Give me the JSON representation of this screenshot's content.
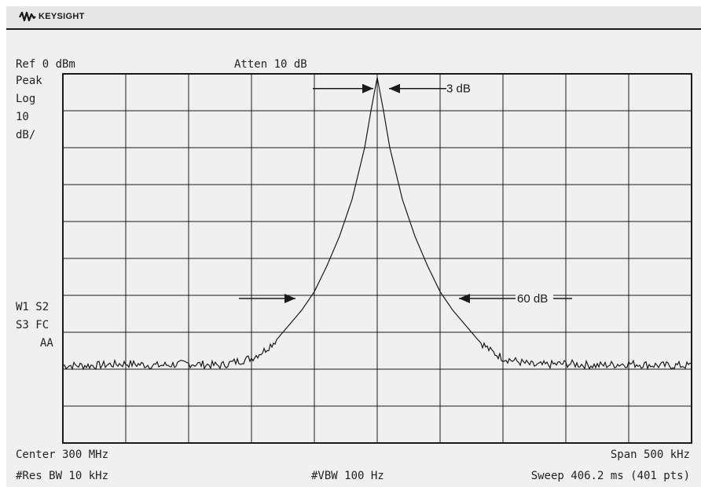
{
  "brand": {
    "name": "KEYSIGHT",
    "icon": "keysight-wave-logo-icon"
  },
  "header": {
    "ref_level": "Ref 0 dBm",
    "attenuation": "Atten 10 dB"
  },
  "left_panel": {
    "detector": "Peak",
    "scale_type": "Log",
    "scale_value": "10",
    "scale_unit": "dB/",
    "trace_status_1": "W1 S2",
    "trace_status_2": "S3 FC",
    "trace_status_3": "AA"
  },
  "footer": {
    "center": "Center 300 MHz",
    "span": "Span 500 kHz",
    "res_bw": "#Res BW 10 kHz",
    "vbw": "#VBW 100 Hz",
    "sweep": "Sweep 406.2 ms (401 pts)"
  },
  "annotations": {
    "bw_3db": "3 dB",
    "bw_60db": "60 dB"
  },
  "colors": {
    "background": "#f0f0f0",
    "grid": "#1a1a1a",
    "trace": "#1a1a1a"
  },
  "chart_data": {
    "type": "line",
    "x_unit": "kHz",
    "y_unit": "dBm",
    "xlim": [
      299750,
      300250
    ],
    "ylim": [
      -100,
      0
    ],
    "x_divisions": 10,
    "y_divisions": 10,
    "grid": true,
    "center_khz": 300000,
    "span_khz": 500,
    "peak": {
      "x": 300000,
      "y": -1
    },
    "noise_floor_dbm": -79,
    "series": [
      {
        "points": [
          [
            299750,
            -79
          ],
          [
            299775,
            -79
          ],
          [
            299800,
            -78.5
          ],
          [
            299825,
            -79
          ],
          [
            299850,
            -78.5
          ],
          [
            299875,
            -79
          ],
          [
            299900,
            -77
          ],
          [
            299910,
            -75
          ],
          [
            299920,
            -72
          ],
          [
            299930,
            -68
          ],
          [
            299940,
            -64
          ],
          [
            299950,
            -59
          ],
          [
            299960,
            -52
          ],
          [
            299970,
            -44
          ],
          [
            299980,
            -34
          ],
          [
            299990,
            -20
          ],
          [
            299995,
            -10
          ],
          [
            300000,
            -1
          ],
          [
            300005,
            -10
          ],
          [
            300010,
            -20
          ],
          [
            300020,
            -34
          ],
          [
            300030,
            -44
          ],
          [
            300040,
            -52
          ],
          [
            300050,
            -59
          ],
          [
            300060,
            -64
          ],
          [
            300070,
            -68
          ],
          [
            300080,
            -72
          ],
          [
            300090,
            -75
          ],
          [
            300100,
            -77
          ],
          [
            300125,
            -79
          ],
          [
            300150,
            -78.5
          ],
          [
            300175,
            -79
          ],
          [
            300200,
            -78.5
          ],
          [
            300225,
            -79
          ],
          [
            300250,
            -79
          ]
        ]
      }
    ],
    "arrows": [
      {
        "label": "3 dB",
        "y": -1,
        "x_left": 299985,
        "x_right": 300015
      },
      {
        "label": "60 dB",
        "y": -60,
        "x_left": 299952,
        "x_right": 300048
      }
    ]
  }
}
